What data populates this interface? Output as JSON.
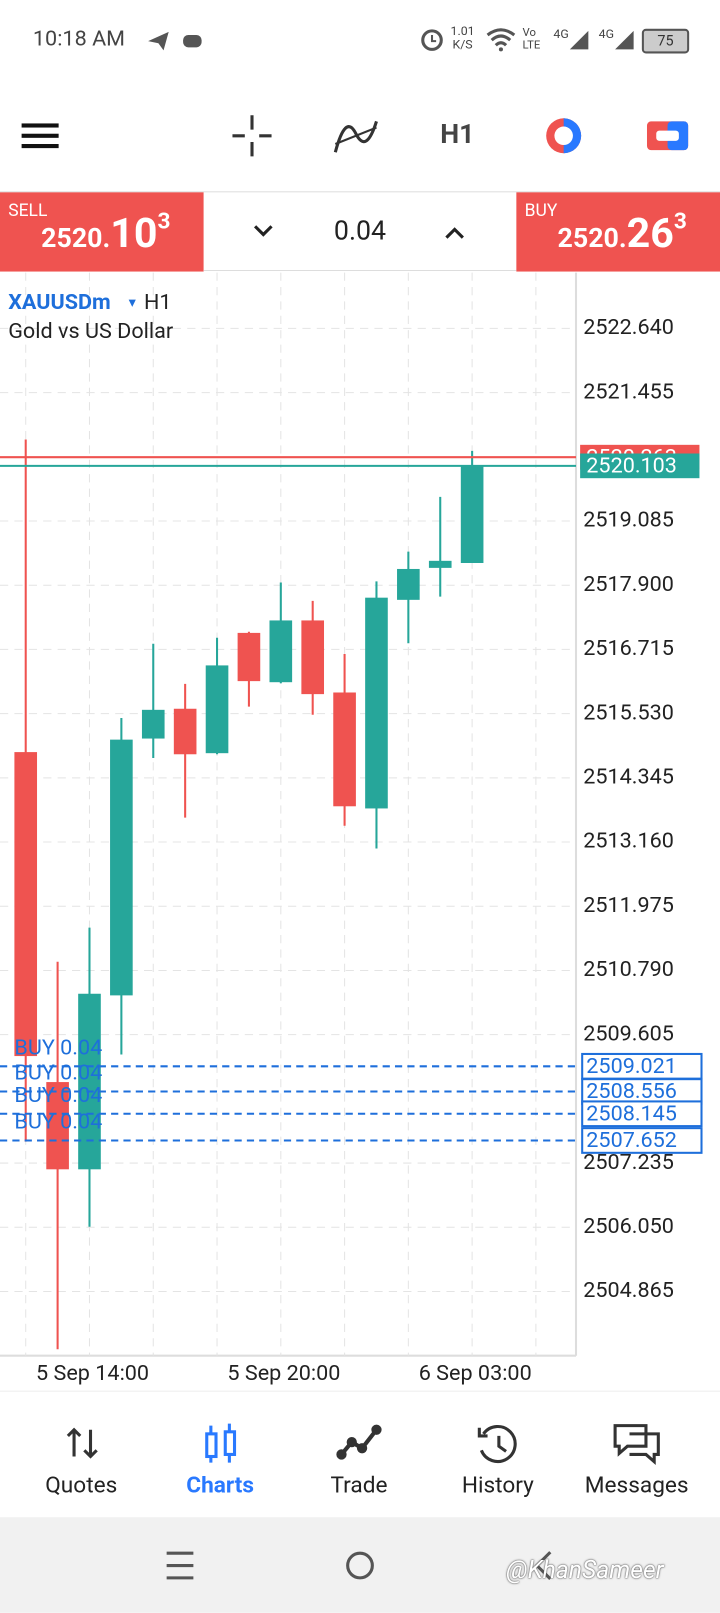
{
  "status_bar": {
    "time": "10:18 AM",
    "speed": "1.01",
    "speed_unit": "K/S",
    "volte_top": "Vo",
    "volte_bottom": "LTE",
    "net1": "4G",
    "net2": "4G",
    "battery": "75"
  },
  "toolbar": {
    "timeframe": "H1"
  },
  "trade_bar": {
    "sell": {
      "label": "SELL",
      "prefix": "2520.",
      "big": "10",
      "small": "3"
    },
    "volume": "0.04",
    "buy": {
      "label": "BUY",
      "prefix": "2520.",
      "big": "26",
      "small": "3"
    }
  },
  "chart_data": {
    "type": "candlestick",
    "symbol": "XAUUSDm",
    "timeframe": "H1",
    "description": "Gold vs US Dollar",
    "categories": [
      null,
      null,
      "5 Sep 14:00",
      null,
      null,
      null,
      null,
      null,
      "5 Sep 20:00",
      null,
      null,
      null,
      null,
      null,
      "6 Sep 03:00"
    ],
    "series": {
      "open": [
        2514.82,
        2508.73,
        2507.12,
        2510.33,
        2515.07,
        2515.62,
        2514.8,
        2517.02,
        2516.11,
        2517.25,
        2515.92,
        2513.78,
        2517.63,
        2518.22,
        2518.31
      ],
      "high": [
        2520.59,
        2510.95,
        2511.58,
        2515.45,
        2516.82,
        2516.08,
        2516.93,
        2517.04,
        2517.95,
        2517.61,
        2516.63,
        2517.97,
        2518.52,
        2519.53,
        2520.38
      ],
      "low": [
        2507.63,
        2503.8,
        2506.06,
        2509.24,
        2514.71,
        2513.61,
        2514.78,
        2515.66,
        2516.09,
        2515.51,
        2513.46,
        2513.04,
        2516.83,
        2517.69,
        2518.31
      ],
      "close": [
        2509.21,
        2507.12,
        2510.36,
        2515.05,
        2515.6,
        2514.78,
        2516.42,
        2516.13,
        2517.25,
        2515.89,
        2513.82,
        2517.67,
        2518.2,
        2518.35,
        2520.1
      ]
    },
    "up_color": "#26a69a",
    "down_color": "#ef5350",
    "ylim": [
      2503.68,
      2523.67
    ],
    "yticks": [
      {
        "value": 2522.64,
        "label": "2522.640"
      },
      {
        "value": 2521.455,
        "label": "2521.455"
      },
      {
        "value": 2519.085,
        "label": "2519.085"
      },
      {
        "value": 2517.9,
        "label": "2517.900"
      },
      {
        "value": 2516.715,
        "label": "2516.715"
      },
      {
        "value": 2515.53,
        "label": "2515.530"
      },
      {
        "value": 2514.345,
        "label": "2514.345"
      },
      {
        "value": 2513.16,
        "label": "2513.160"
      },
      {
        "value": 2511.975,
        "label": "2511.975"
      },
      {
        "value": 2510.79,
        "label": "2510.790"
      },
      {
        "value": 2509.605,
        "label": "2509.605"
      },
      {
        "value": 2507.235,
        "label": "2507.235"
      },
      {
        "value": 2506.05,
        "label": "2506.050"
      },
      {
        "value": 2504.865,
        "label": "2504.865"
      }
    ],
    "grid": true,
    "ask_line": {
      "value": 2520.263,
      "color": "#ef5350"
    },
    "bid_line": {
      "value": 2520.103,
      "color": "#26a69a"
    },
    "orders": [
      {
        "label": "BUY 0.04",
        "price": 2509.021
      },
      {
        "label": "BUY 0.04",
        "price": 2508.556
      },
      {
        "label": "BUY 0.04",
        "price": 2508.145
      },
      {
        "label": "BUY 0.04",
        "price": 2507.652
      }
    ],
    "order_color": "#1e6fdb"
  },
  "nav": {
    "items": [
      "Quotes",
      "Charts",
      "Trade",
      "History",
      "Messages"
    ],
    "active": 1,
    "active_color": "#2979ff"
  },
  "watermark": "@KhanSameer"
}
